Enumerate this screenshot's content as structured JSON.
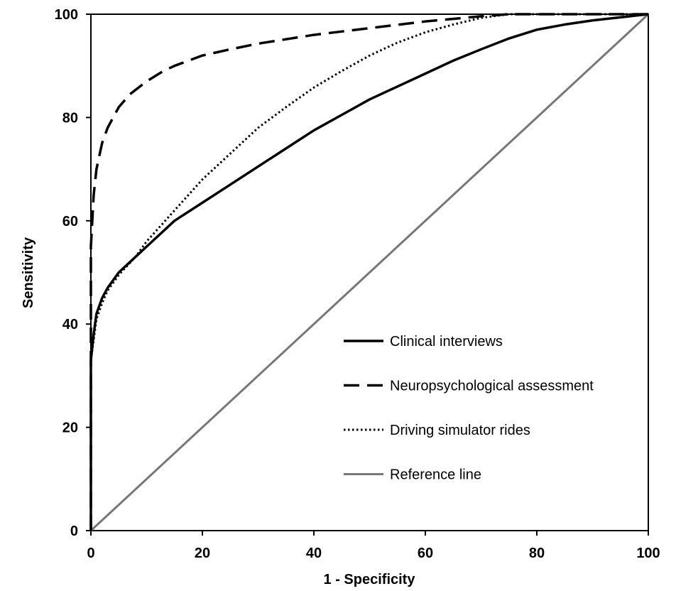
{
  "chart_data": {
    "type": "line",
    "title": "",
    "xlabel": "1 - Specificity",
    "ylabel": "Sensitivity",
    "xlim": [
      0,
      100
    ],
    "ylim": [
      0,
      100
    ],
    "x_ticks": [
      "0",
      "20",
      "40",
      "60",
      "80",
      "100"
    ],
    "y_ticks": [
      "0",
      "20",
      "40",
      "60",
      "80",
      "100"
    ],
    "grid": false,
    "legend_position": "bottom-right",
    "series": [
      {
        "name": "Clinical interviews",
        "style": "solid",
        "color": "#000000",
        "x": [
          0,
          0,
          0.5,
          1,
          2,
          3,
          5,
          8,
          10,
          15,
          20,
          25,
          30,
          35,
          40,
          45,
          50,
          55,
          60,
          65,
          70,
          75,
          80,
          85,
          90,
          95,
          100
        ],
        "y": [
          0,
          33,
          38,
          42,
          45,
          47,
          50,
          53,
          55,
          60,
          63.5,
          67,
          70.5,
          74,
          77.5,
          80.5,
          83.5,
          86,
          88.5,
          91,
          93.2,
          95.3,
          97,
          98,
          98.8,
          99.4,
          100
        ]
      },
      {
        "name": "Neuropsychological assessment",
        "style": "dashed",
        "color": "#000000",
        "x": [
          0,
          0,
          0.5,
          1,
          2,
          3,
          5,
          7,
          10,
          13,
          15,
          20,
          25,
          30,
          40,
          50,
          60,
          70,
          75,
          80,
          90,
          100
        ],
        "y": [
          0,
          55,
          65,
          70,
          75,
          78,
          82,
          84.5,
          87,
          89,
          90,
          92,
          93.2,
          94.3,
          96,
          97.3,
          98.6,
          99.6,
          100,
          100,
          100,
          100
        ]
      },
      {
        "name": "Driving simulator rides",
        "style": "dotted",
        "color": "#000000",
        "x": [
          0,
          0,
          0.5,
          1,
          2,
          3,
          5,
          8,
          10,
          15,
          20,
          25,
          30,
          35,
          40,
          45,
          50,
          55,
          60,
          65,
          70,
          75,
          80,
          90,
          100
        ],
        "y": [
          0,
          33,
          37,
          41,
          44,
          46.5,
          49.5,
          53,
          56,
          62,
          68,
          73,
          78,
          82,
          85.8,
          89,
          92,
          94.5,
          96.5,
          98,
          99.3,
          100,
          100,
          100,
          100
        ]
      },
      {
        "name": "Reference line",
        "style": "solid-gray",
        "color": "#777777",
        "x": [
          0,
          100
        ],
        "y": [
          0,
          100
        ]
      }
    ]
  }
}
